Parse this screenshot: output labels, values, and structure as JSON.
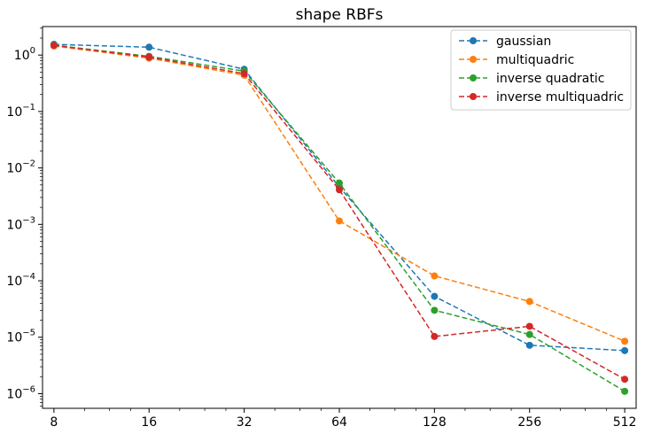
{
  "chart_data": {
    "type": "line",
    "title": "shape RBFs",
    "xlabel": "",
    "ylabel": "",
    "x_scale": "log2",
    "y_scale": "log",
    "x": [
      8,
      16,
      32,
      64,
      128,
      256,
      512
    ],
    "x_tick_labels": [
      "8",
      "16",
      "32",
      "64",
      "128",
      "256",
      "512"
    ],
    "ylim": [
      5.5e-07,
      3.2
    ],
    "y_ticks": [
      {
        "value": 1,
        "base": "10",
        "exp": "0"
      },
      {
        "value": 0.1,
        "base": "10",
        "exp": "−1"
      },
      {
        "value": 0.01,
        "base": "10",
        "exp": "−2"
      },
      {
        "value": 0.001,
        "base": "10",
        "exp": "−3"
      },
      {
        "value": 0.0001,
        "base": "10",
        "exp": "−4"
      },
      {
        "value": 1e-05,
        "base": "10",
        "exp": "−5"
      },
      {
        "value": 1e-06,
        "base": "10",
        "exp": "−6"
      }
    ],
    "grid": false,
    "legend_position": "top-right",
    "line_style": "dashed",
    "marker": "circle",
    "series": [
      {
        "name": "gaussian",
        "color": "#1f77b4",
        "values": [
          1.55,
          1.38,
          0.56,
          0.0046,
          5.3e-05,
          7.2e-06,
          5.8e-06
        ]
      },
      {
        "name": "multiquadric",
        "color": "#ff7f0e",
        "values": [
          1.45,
          0.88,
          0.44,
          0.00115,
          0.000122,
          4.3e-05,
          8.5e-06
        ]
      },
      {
        "name": "inverse quadratic",
        "color": "#2ca02c",
        "values": [
          1.5,
          0.95,
          0.52,
          0.0054,
          3e-05,
          1.12e-05,
          1.1e-06
        ]
      },
      {
        "name": "inverse multiquadric",
        "color": "#d62728",
        "values": [
          1.48,
          0.92,
          0.47,
          0.0041,
          1.03e-05,
          1.56e-05,
          1.8e-06
        ]
      }
    ]
  }
}
